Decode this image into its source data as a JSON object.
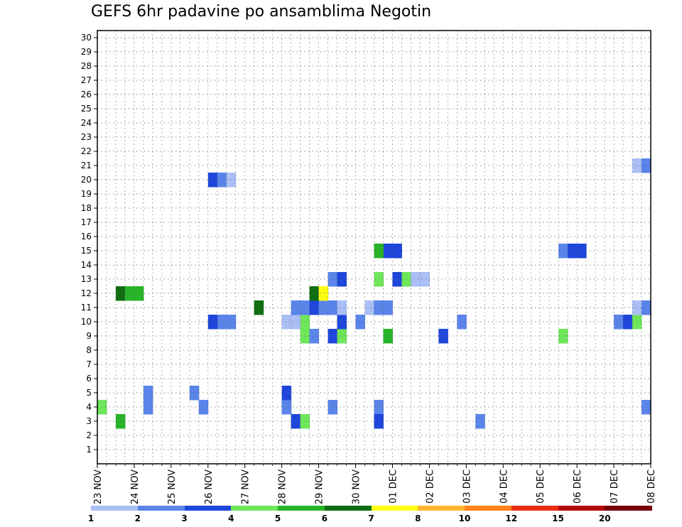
{
  "chart_data": {
    "type": "heatmap",
    "title": "GEFS 6hr padavine po ansamblima Negotin",
    "xlabel": "",
    "ylabel": "",
    "x_tick_labels": [
      "23 NOV",
      "24 NOV",
      "25 NOV",
      "26 NOV",
      "27 NOV",
      "28 NOV",
      "29 NOV",
      "30 NOV",
      "01 DEC",
      "02 DEC",
      "03 DEC",
      "04 DEC",
      "05 DEC",
      "06 DEC",
      "07 DEC",
      "08 DEC"
    ],
    "y_tick_labels": [
      "1",
      "2",
      "3",
      "4",
      "5",
      "6",
      "7",
      "8",
      "9",
      "10",
      "11",
      "12",
      "13",
      "14",
      "15",
      "16",
      "17",
      "18",
      "19",
      "20",
      "21",
      "22",
      "23",
      "24",
      "25",
      "26",
      "27",
      "28",
      "29",
      "30"
    ],
    "x_range_steps": [
      0,
      60
    ],
    "y_range": [
      0,
      30
    ],
    "grid": true,
    "colorbar": {
      "labels": [
        "1",
        "2",
        "3",
        "4",
        "5",
        "6",
        "7",
        "8",
        "10",
        "12",
        "15",
        "20"
      ],
      "colors": [
        "#aabff5",
        "#5a84ea",
        "#1e46dc",
        "#6ee65a",
        "#28b428",
        "#0f6e12",
        "#ffff14",
        "#ffb432",
        "#ff8218",
        "#eb2d0f",
        "#b40a0a",
        "#780004"
      ]
    },
    "cells": [
      [
        4,
        0,
        4
      ],
      [
        4,
        5,
        2
      ],
      [
        4,
        11,
        2
      ],
      [
        4,
        25,
        2
      ],
      [
        4,
        30,
        2
      ],
      [
        4,
        -1,
        2
      ],
      [
        3,
        2,
        5
      ],
      [
        3,
        21,
        2
      ],
      [
        3,
        21,
        4
      ],
      [
        3,
        21,
        3
      ],
      [
        3,
        22,
        4
      ],
      [
        3,
        30,
        4
      ],
      [
        3,
        30,
        3
      ],
      [
        3,
        41,
        2
      ],
      [
        4,
        20,
        3
      ],
      [
        4,
        20,
        2
      ],
      [
        5,
        5,
        1
      ],
      [
        5,
        5,
        5
      ],
      [
        5,
        20,
        3
      ],
      [
        5,
        5,
        2
      ],
      [
        5,
        10,
        2
      ],
      [
        9,
        22,
        4
      ],
      [
        9,
        23,
        2
      ],
      [
        9,
        25,
        1
      ],
      [
        9,
        25,
        3
      ],
      [
        9,
        26,
        2
      ],
      [
        9,
        26,
        4
      ],
      [
        9,
        31,
        5
      ],
      [
        9,
        37,
        3
      ],
      [
        9,
        50,
        4
      ],
      [
        10,
        28,
        2
      ],
      [
        10,
        26,
        3
      ],
      [
        10,
        22,
        4
      ],
      [
        10,
        13,
        2
      ],
      [
        10,
        14,
        2
      ],
      [
        10,
        12,
        3
      ],
      [
        10,
        21,
        1
      ],
      [
        10,
        20,
        1
      ],
      [
        10,
        39,
        2
      ],
      [
        10,
        56,
        2
      ],
      [
        10,
        57,
        3
      ],
      [
        10,
        58,
        4
      ],
      [
        11,
        17,
        5
      ],
      [
        11,
        17,
        6
      ],
      [
        11,
        21,
        2
      ],
      [
        11,
        22,
        2
      ],
      [
        11,
        23,
        3
      ],
      [
        11,
        24,
        2
      ],
      [
        11,
        25,
        2
      ],
      [
        11,
        26,
        1
      ],
      [
        11,
        29,
        1
      ],
      [
        11,
        30,
        2
      ],
      [
        11,
        31,
        2
      ],
      [
        11,
        58,
        1
      ],
      [
        11,
        59,
        2
      ],
      [
        12,
        2,
        6
      ],
      [
        12,
        4,
        4
      ],
      [
        12,
        3,
        5
      ],
      [
        12,
        4,
        5
      ],
      [
        12,
        23,
        5
      ],
      [
        12,
        24,
        6
      ],
      [
        12,
        23,
        6
      ],
      [
        12,
        24,
        7
      ],
      [
        13,
        25,
        2
      ],
      [
        13,
        26,
        3
      ],
      [
        13,
        30,
        4
      ],
      [
        13,
        32,
        2
      ],
      [
        13,
        33,
        3
      ],
      [
        13,
        32,
        3
      ],
      [
        13,
        33,
        4
      ],
      [
        13,
        34,
        1
      ],
      [
        13,
        35,
        1
      ],
      [
        15,
        31,
        1
      ],
      [
        15,
        32,
        2
      ],
      [
        15,
        31,
        3
      ],
      [
        15,
        30,
        3
      ],
      [
        15,
        32,
        3
      ],
      [
        15,
        30,
        5
      ],
      [
        15,
        50,
        2
      ],
      [
        15,
        51,
        3
      ],
      [
        15,
        52,
        3
      ],
      [
        20,
        12,
        3
      ],
      [
        20,
        13,
        2
      ],
      [
        20,
        14,
        1
      ],
      [
        21,
        58,
        1
      ],
      [
        21,
        59,
        2
      ]
    ]
  }
}
